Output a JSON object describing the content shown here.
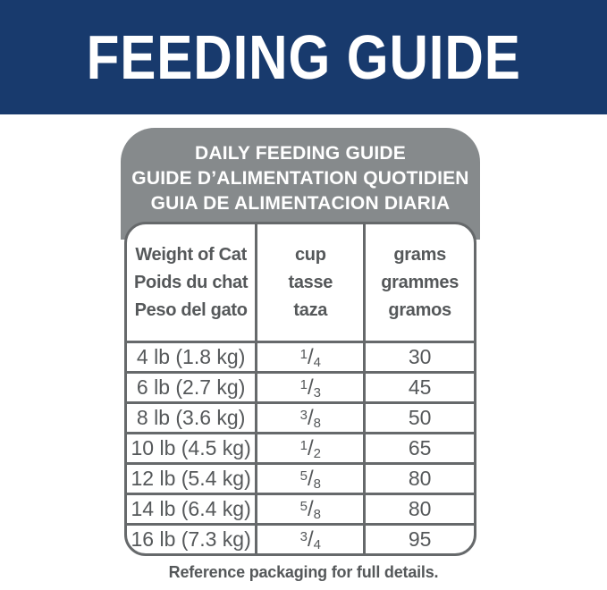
{
  "banner": {
    "title": "FEEDING GUIDE",
    "bg_color": "#183a6d",
    "text_color": "#ffffff"
  },
  "panel": {
    "bg_color": "#868a8c",
    "text_color": "#ffffff",
    "title_lines": [
      "DAILY FEEDING GUIDE",
      "GUIDE D’ALIMENTATION QUOTIDIEN",
      "GUIA DE ALIMENTACION DIARIA"
    ]
  },
  "table": {
    "border_color": "#66696b",
    "text_color": "#55585a",
    "columns": [
      {
        "header_lines": [
          "Weight of Cat",
          "Poids du chat",
          "Peso del gato"
        ]
      },
      {
        "header_lines": [
          "cup",
          "tasse",
          "taza"
        ]
      },
      {
        "header_lines": [
          "grams",
          "grammes",
          "gramos"
        ]
      }
    ],
    "rows": [
      {
        "weight": "4 lb (1.8 kg)",
        "cup": "1/4",
        "cup_num": "1",
        "cup_den": "4",
        "grams": "30"
      },
      {
        "weight": "6 lb (2.7 kg)",
        "cup": "1/3",
        "cup_num": "1",
        "cup_den": "3",
        "grams": "45"
      },
      {
        "weight": "8 lb (3.6 kg)",
        "cup": "3/8",
        "cup_num": "3",
        "cup_den": "8",
        "grams": "50"
      },
      {
        "weight": "10 lb (4.5 kg)",
        "cup": "1/2",
        "cup_num": "1",
        "cup_den": "2",
        "grams": "65"
      },
      {
        "weight": "12 lb (5.4 kg)",
        "cup": "5/8",
        "cup_num": "5",
        "cup_den": "8",
        "grams": "80"
      },
      {
        "weight": "14 lb (6.4 kg)",
        "cup": "5/8",
        "cup_num": "5",
        "cup_den": "8",
        "grams": "80"
      },
      {
        "weight": "16 lb (7.3 kg)",
        "cup": "3/4",
        "cup_num": "3",
        "cup_den": "4",
        "grams": "95"
      }
    ]
  },
  "footer": {
    "note": "Reference packaging for full details."
  }
}
